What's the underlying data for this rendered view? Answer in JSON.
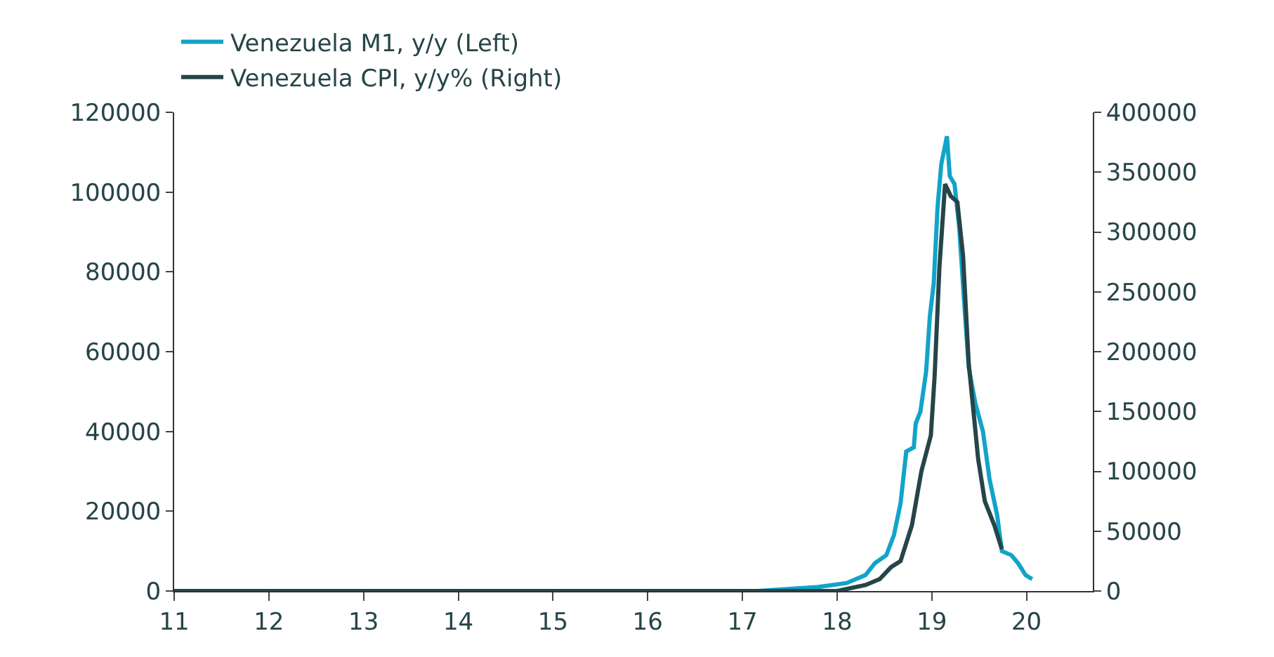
{
  "chart_data": {
    "type": "line",
    "legend": "top left",
    "xlim": [
      11,
      20.7
    ],
    "xticks": [
      11,
      12,
      13,
      14,
      15,
      16,
      17,
      18,
      19,
      20
    ],
    "ylim": [
      0,
      120000
    ],
    "yticks": [
      0,
      20000,
      40000,
      60000,
      80000,
      100000,
      120000
    ],
    "y2lim": [
      0,
      400000
    ],
    "y2ticks": [
      0,
      50000,
      100000,
      150000,
      200000,
      250000,
      300000,
      350000,
      400000
    ],
    "series": [
      {
        "name": "Venezuela M1, y/y (Left)",
        "color": "#12a4c8",
        "axis": "y",
        "x": [
          11,
          17.16,
          17.8,
          18.1,
          18.3,
          18.4,
          18.52,
          18.6,
          18.67,
          18.73,
          18.81,
          18.83,
          18.88,
          18.94,
          18.98,
          19.02,
          19.06,
          19.1,
          19.16,
          19.19,
          19.24,
          19.29,
          19.34,
          19.39,
          19.46,
          19.54,
          19.61,
          19.69,
          19.74,
          19.84,
          19.91,
          19.99,
          20.06
        ],
        "values": [
          0,
          0,
          1000,
          2000,
          4000,
          7000,
          9000,
          14000,
          22000,
          35000,
          36000,
          42000,
          45000,
          55000,
          69000,
          77000,
          96000,
          107000,
          114000,
          104000,
          102000,
          91000,
          73000,
          56000,
          47000,
          40000,
          28000,
          19000,
          10000,
          9000,
          7000,
          4000,
          3000
        ]
      },
      {
        "name": "Venezuela CPI, y/y% (Right)",
        "color": "#264548",
        "axis": "y2",
        "x": [
          11,
          17.16,
          18.0,
          18.3,
          18.45,
          18.57,
          18.67,
          18.79,
          18.89,
          18.99,
          19.03,
          19.08,
          19.14,
          19.2,
          19.27,
          19.33,
          19.39,
          19.49,
          19.56,
          19.66,
          19.74
        ],
        "values": [
          0,
          0,
          0,
          5000,
          10000,
          20000,
          25000,
          55000,
          100000,
          130000,
          180000,
          270000,
          340000,
          330000,
          325000,
          280000,
          190000,
          110000,
          75000,
          55000,
          35000
        ]
      }
    ]
  }
}
